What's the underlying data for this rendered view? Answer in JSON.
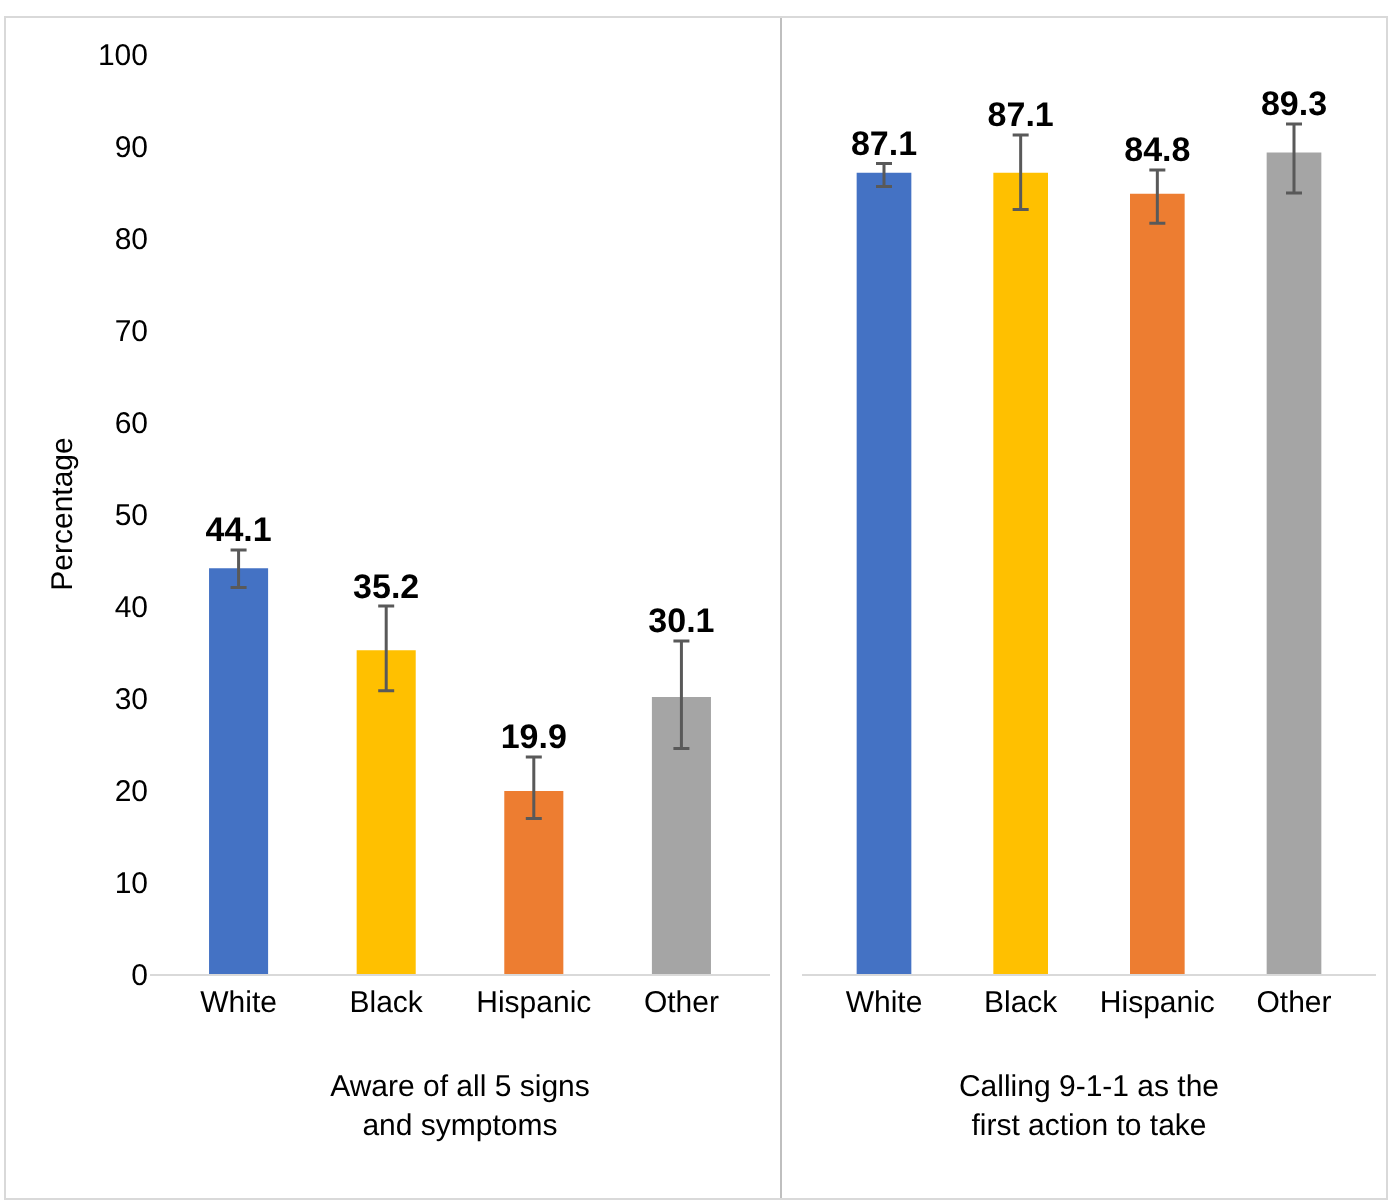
{
  "chart_data": [
    {
      "type": "bar",
      "categories": [
        "White",
        "Black",
        "Hispanic",
        "Other"
      ],
      "values": [
        44.1,
        35.2,
        19.9,
        30.1
      ],
      "colors": [
        "#4472c4",
        "#ffc000",
        "#ed7d31",
        "#a5a5a5"
      ],
      "errors": [
        [
          42.0,
          46.1
        ],
        [
          30.8,
          40.0
        ],
        [
          16.9,
          23.6
        ],
        [
          24.5,
          36.2
        ]
      ],
      "xlabel": "Aware of all 5 signs\nand symptoms",
      "ylabel": "Percentage",
      "ylim": [
        0,
        100
      ],
      "yticks": [
        0,
        10,
        20,
        30,
        40,
        50,
        60,
        70,
        80,
        90,
        100
      ],
      "data_labels": true,
      "grid": false,
      "legend": false
    },
    {
      "type": "bar",
      "categories": [
        "White",
        "Black",
        "Hispanic",
        "Other"
      ],
      "values": [
        87.1,
        87.1,
        84.8,
        89.3
      ],
      "colors": [
        "#4472c4",
        "#ffc000",
        "#ed7d31",
        "#a5a5a5"
      ],
      "errors": [
        [
          85.6,
          88.1
        ],
        [
          83.1,
          91.2
        ],
        [
          81.6,
          87.4
        ],
        [
          84.9,
          92.4
        ]
      ],
      "xlabel": "Calling 9-1-1 as the\nfirst action to take",
      "ylim": [
        0,
        100
      ],
      "yticks": [
        0,
        10,
        20,
        30,
        40,
        50,
        60,
        70,
        80,
        90,
        100
      ],
      "data_labels": true,
      "grid": false,
      "legend": false,
      "tick_labels": "x"
    }
  ]
}
